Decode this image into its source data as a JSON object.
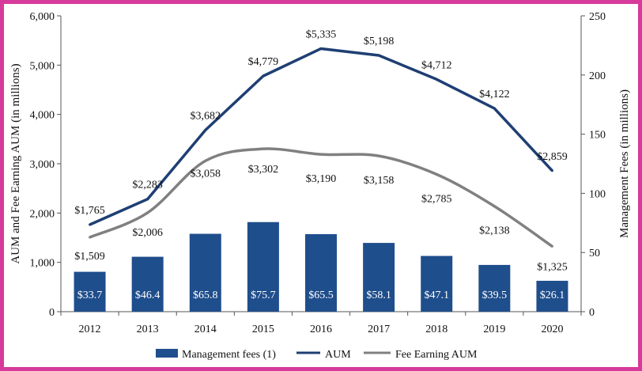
{
  "chart_data": {
    "type": "bar+line",
    "categories": [
      "2012",
      "2013",
      "2014",
      "2015",
      "2016",
      "2017",
      "2018",
      "2019",
      "2020"
    ],
    "y_left": {
      "label": "AUM and Fee Earning AUM (in millions)",
      "ylim": [
        0,
        6000
      ],
      "ticks": [
        0,
        1000,
        2000,
        3000,
        4000,
        5000,
        6000
      ],
      "tick_labels": [
        "0",
        "1,000",
        "2,000",
        "3,000",
        "4,000",
        "5,000",
        "6,000"
      ]
    },
    "y_right": {
      "label": "Management Fees (in millions)",
      "ylim": [
        0,
        250
      ],
      "ticks": [
        0,
        50,
        100,
        150,
        200,
        250
      ],
      "tick_labels": [
        "0",
        "50",
        "100",
        "150",
        "200",
        "250"
      ]
    },
    "series": [
      {
        "name": "Management fees (1)",
        "kind": "bar",
        "axis": "right",
        "color": "#1f4e8c",
        "values": [
          33.7,
          46.4,
          65.8,
          75.7,
          65.5,
          58.1,
          47.1,
          39.5,
          26.1
        ],
        "labels": [
          "$33.7",
          "$46.4",
          "$65.8",
          "$75.7",
          "$65.5",
          "$58.1",
          "$47.1",
          "$39.5",
          "$26.1"
        ]
      },
      {
        "name": "AUM",
        "kind": "line",
        "axis": "left",
        "color": "#1f3f73",
        "values": [
          1765,
          2283,
          3682,
          4779,
          5335,
          5198,
          4712,
          4122,
          2859
        ],
        "labels": [
          "$1,765",
          "$2,283",
          "$3,682",
          "$4,779",
          "$5,335",
          "$5,198",
          "$4,712",
          "$4,122",
          "$2,859"
        ]
      },
      {
        "name": "Fee Earning AUM",
        "kind": "line",
        "axis": "left",
        "color": "#808080",
        "values": [
          1509,
          2006,
          3058,
          3302,
          3190,
          3158,
          2785,
          2138,
          1325
        ],
        "labels": [
          "$1,509",
          "$2,006",
          "$3,058",
          "$3,302",
          "$3,190",
          "$3,158",
          "$2,785",
          "$2,138",
          "$1,325"
        ]
      }
    ],
    "legend": "bottom"
  }
}
